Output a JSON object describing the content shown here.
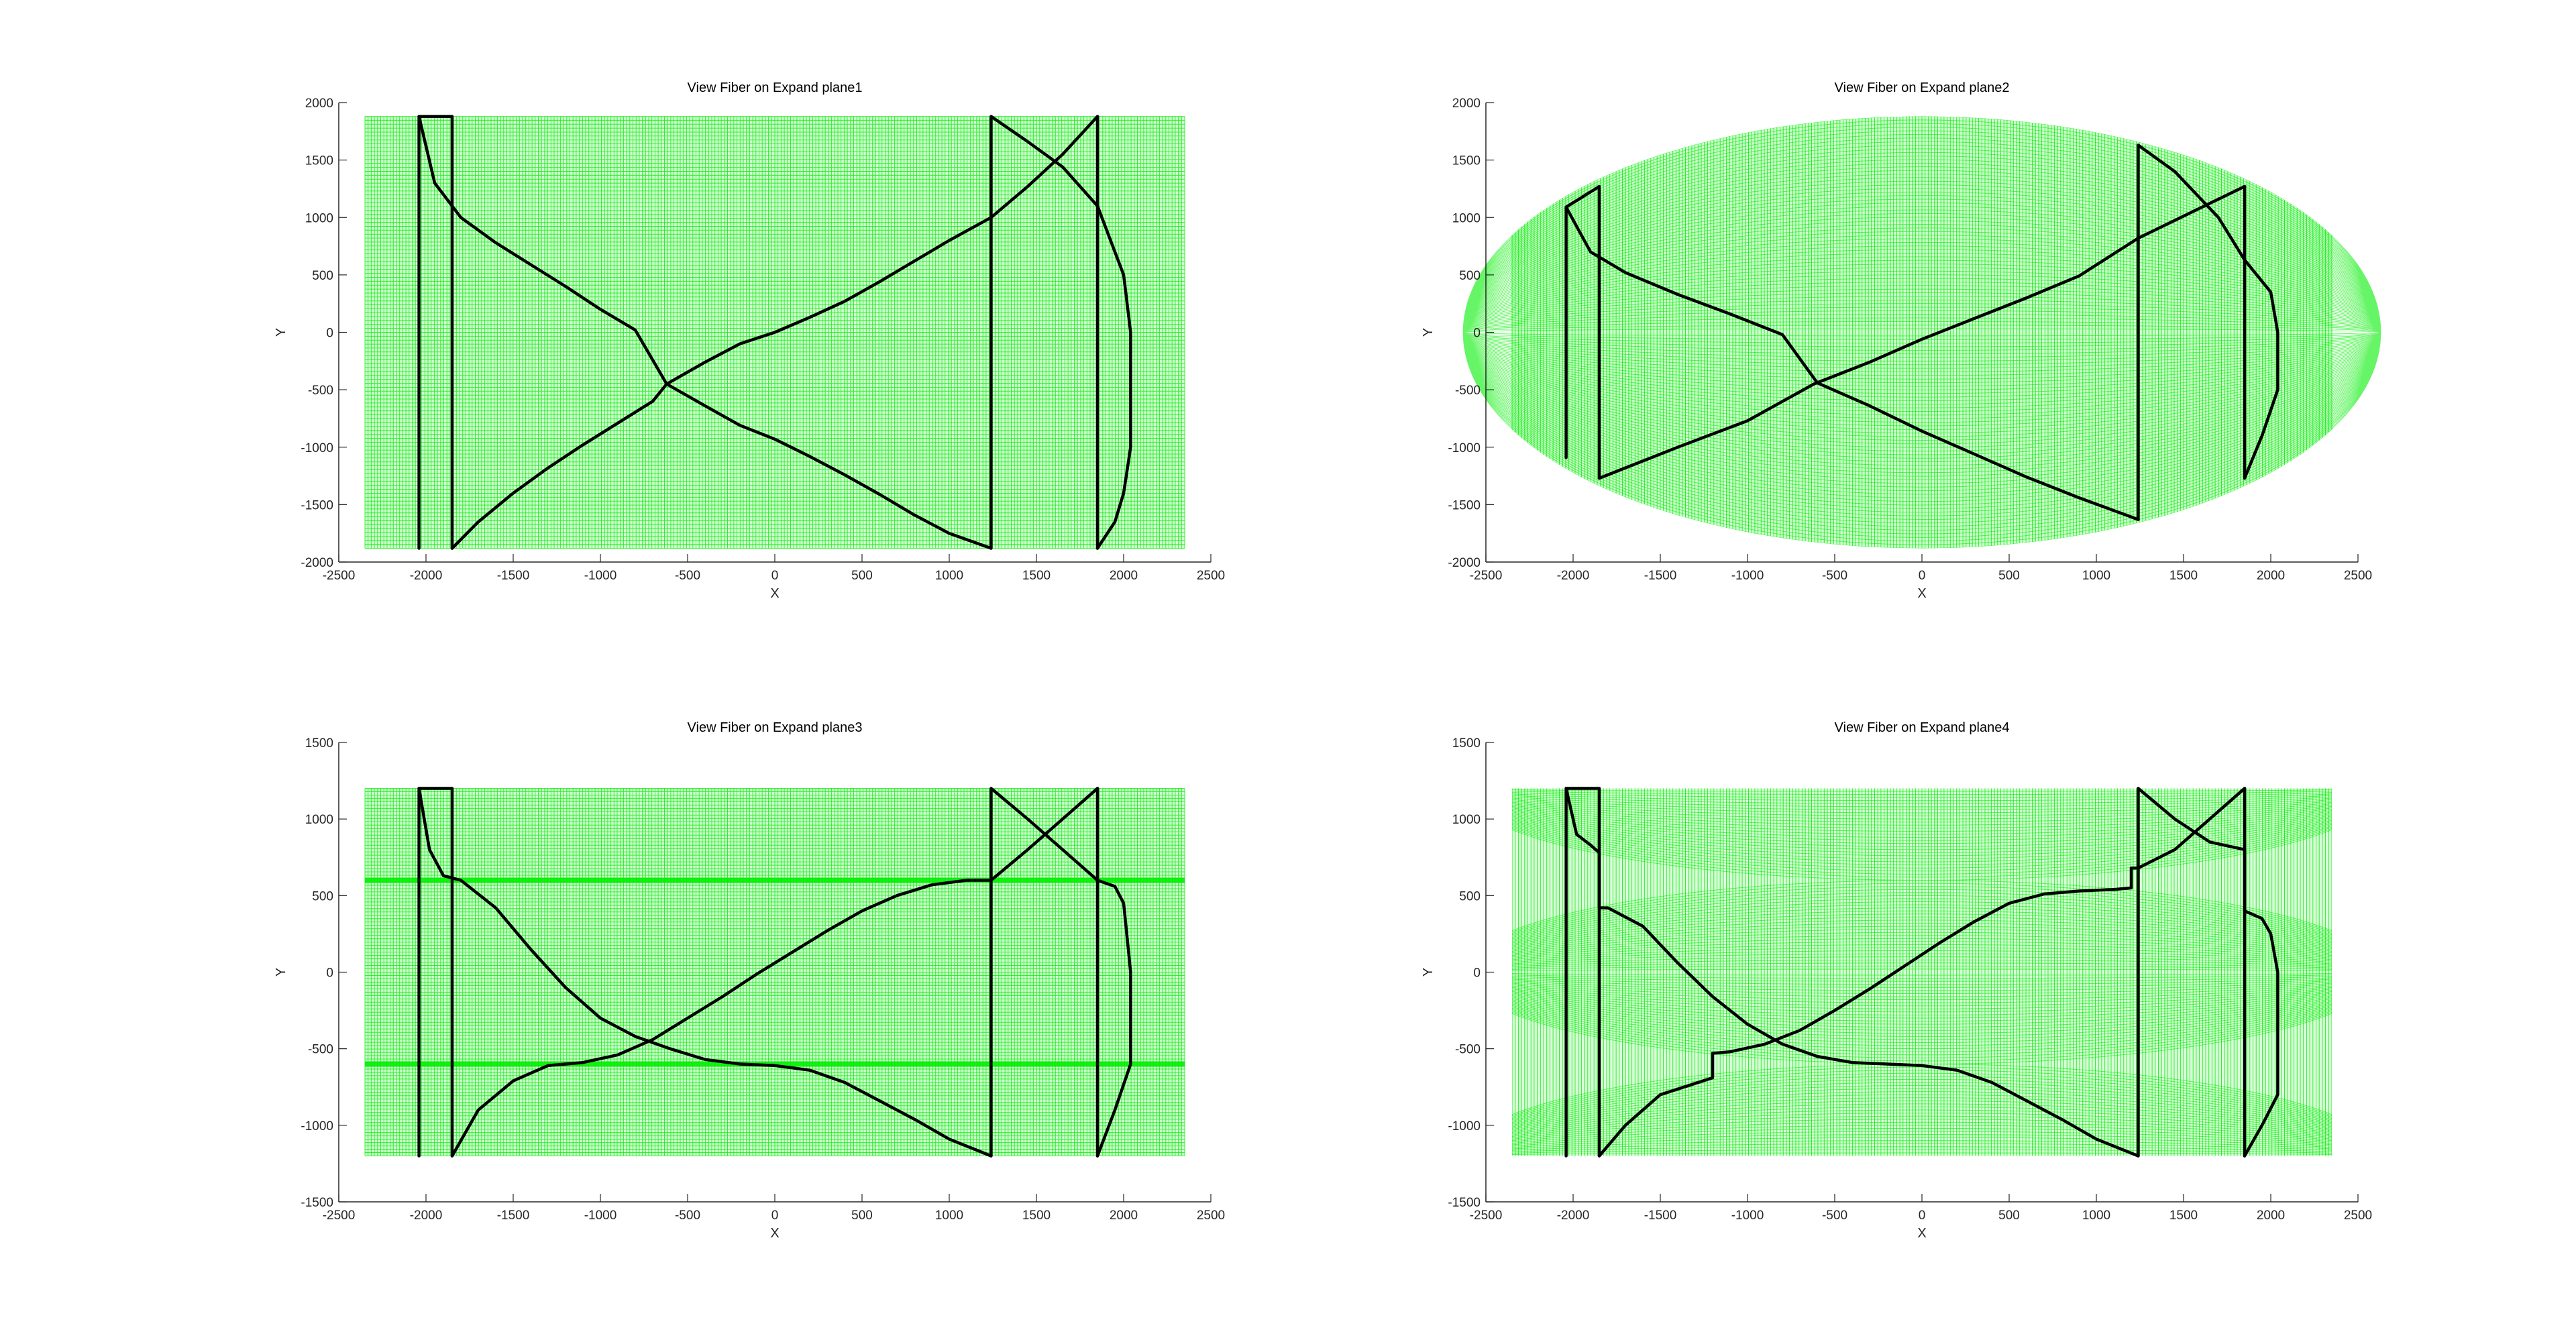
{
  "figure": {
    "background": "#ffffff",
    "mesh_color": "#00ee00",
    "fiber_color": "#000000"
  },
  "chart_data": [
    {
      "type": "line",
      "title": "View Fiber on Expand plane1",
      "xlabel": "X",
      "ylabel": "Y",
      "xlim": [
        -2500,
        2500
      ],
      "ylim": [
        -2000,
        2000
      ],
      "xticks": [
        -2500,
        -2000,
        -1500,
        -1000,
        -500,
        0,
        500,
        1000,
        1500,
        2000,
        2500
      ],
      "yticks": [
        -2000,
        -1500,
        -1000,
        -500,
        0,
        500,
        1000,
        1500,
        2000
      ],
      "mesh": {
        "shape": "rectangle",
        "x_range": [
          -2350,
          2350
        ],
        "y_range": [
          -1880,
          1880
        ],
        "bands": []
      },
      "series": [
        {
          "x": [
            -2040,
            -2040,
            -1850,
            -1850
          ],
          "y": [
            -1880,
            1880,
            1880,
            -1880
          ]
        },
        {
          "x": [
            -2040,
            -1950,
            -1800,
            -1600,
            -1400,
            -1200,
            -1000,
            -800,
            -620,
            -400,
            -200,
            0,
            200,
            400,
            600,
            800,
            1000,
            1240
          ],
          "y": [
            1880,
            1300,
            1000,
            780,
            590,
            400,
            200,
            20,
            -450,
            -640,
            -810,
            -930,
            -1080,
            -1240,
            -1410,
            -1590,
            -1750,
            -1880
          ]
        },
        {
          "x": [
            -1850,
            -1700,
            -1500,
            -1300,
            -1100,
            -900,
            -700,
            -620,
            -400,
            -200,
            0,
            200,
            400,
            600,
            800,
            1000,
            1240,
            1450,
            1650,
            1850
          ],
          "y": [
            -1880,
            -1650,
            -1400,
            -1180,
            -980,
            -790,
            -600,
            -450,
            -260,
            -100,
            0,
            130,
            270,
            440,
            620,
            800,
            1000,
            1270,
            1550,
            1880
          ]
        },
        {
          "x": [
            1850,
            1850
          ],
          "y": [
            1880,
            -1880
          ]
        },
        {
          "x": [
            1240,
            1240,
            1450,
            1650,
            1850,
            2000,
            2040,
            2040,
            2000,
            1950,
            1850
          ],
          "y": [
            -1880,
            1880,
            1660,
            1440,
            1100,
            500,
            0,
            -1000,
            -1400,
            -1650,
            -1880
          ]
        }
      ]
    },
    {
      "type": "line",
      "title": "View Fiber on Expand plane2",
      "xlabel": "X",
      "ylabel": "Y",
      "xlim": [
        -2500,
        2500
      ],
      "ylim": [
        -2000,
        2000
      ],
      "xticks": [
        -2500,
        -2000,
        -1500,
        -1000,
        -500,
        0,
        500,
        1000,
        1500,
        2000,
        2500
      ],
      "yticks": [
        -2000,
        -1500,
        -1000,
        -500,
        0,
        500,
        1000,
        1500,
        2000
      ],
      "mesh": {
        "shape": "ellipse",
        "x_range": [
          -2350,
          2350
        ],
        "y_range": [
          -1880,
          1880
        ],
        "bands": []
      },
      "series": [
        {
          "x": [
            -2040,
            -2040,
            -1850,
            -1850
          ],
          "y": [
            -1090,
            1090,
            1270,
            -1270
          ]
        },
        {
          "x": [
            -2040,
            -1900,
            -1700,
            -1400,
            -1100,
            -800,
            -600,
            -300,
            0,
            300,
            600,
            900,
            1240
          ],
          "y": [
            1090,
            700,
            520,
            330,
            160,
            -20,
            -440,
            -640,
            -860,
            -1060,
            -1260,
            -1440,
            -1630
          ]
        },
        {
          "x": [
            -1850,
            -1400,
            -1000,
            -620,
            -300,
            0,
            300,
            600,
            900,
            1240,
            1850
          ],
          "y": [
            -1270,
            -1000,
            -770,
            -450,
            -260,
            -60,
            120,
            300,
            490,
            820,
            1270
          ]
        },
        {
          "x": [
            1850,
            1850
          ],
          "y": [
            1270,
            -1270
          ]
        },
        {
          "x": [
            1240,
            1240,
            1450,
            1700,
            1850,
            2000,
            2040,
            2040,
            1950,
            1850
          ],
          "y": [
            -1630,
            1630,
            1400,
            1000,
            630,
            350,
            0,
            -500,
            -900,
            -1270
          ]
        }
      ]
    },
    {
      "type": "line",
      "title": "View Fiber on Expand plane3",
      "xlabel": "X",
      "ylabel": "Y",
      "xlim": [
        -2500,
        2500
      ],
      "ylim": [
        -1500,
        1500
      ],
      "xticks": [
        -2500,
        -2000,
        -1500,
        -1000,
        -500,
        0,
        500,
        1000,
        1500,
        2000,
        2500
      ],
      "yticks": [
        -1500,
        -1000,
        -500,
        0,
        500,
        1000,
        1500
      ],
      "mesh": {
        "shape": "rectangle",
        "x_range": [
          -2350,
          2350
        ],
        "y_range": [
          -1200,
          1200
        ],
        "bands": [
          600,
          -600
        ]
      },
      "series": [
        {
          "x": [
            -2040,
            -2040,
            -1850,
            -1850
          ],
          "y": [
            -1200,
            1200,
            1200,
            -1200
          ]
        },
        {
          "x": [
            -2040,
            -1980,
            -1900,
            -1800,
            -1600,
            -1400,
            -1200,
            -1000,
            -800,
            -600,
            -400,
            -200,
            0,
            200,
            400,
            600,
            800,
            1000,
            1240
          ],
          "y": [
            1200,
            800,
            630,
            600,
            420,
            150,
            -100,
            -300,
            -420,
            -500,
            -570,
            -600,
            -610,
            -640,
            -720,
            -840,
            -960,
            -1090,
            -1200
          ]
        },
        {
          "x": [
            -1850,
            -1700,
            -1500,
            -1300,
            -1100,
            -900,
            -700,
            -500,
            -300,
            -100,
            100,
            300,
            500,
            700,
            900,
            1100,
            1240,
            1450,
            1650,
            1850
          ],
          "y": [
            -1200,
            -900,
            -710,
            -610,
            -590,
            -540,
            -440,
            -300,
            -160,
            -10,
            130,
            270,
            400,
            500,
            570,
            600,
            600,
            800,
            1000,
            1200
          ]
        },
        {
          "x": [
            1850,
            1850
          ],
          "y": [
            1200,
            -1200
          ]
        },
        {
          "x": [
            1240,
            1240,
            1450,
            1650,
            1850,
            1950,
            2000,
            2040,
            2040,
            1950,
            1850
          ],
          "y": [
            -1200,
            1200,
            1000,
            800,
            600,
            560,
            450,
            0,
            -600,
            -900,
            -1200
          ]
        }
      ]
    },
    {
      "type": "line",
      "title": "View Fiber on Expand plane4",
      "xlabel": "X",
      "ylabel": "Y",
      "xlim": [
        -2500,
        2500
      ],
      "ylim": [
        -1500,
        1500
      ],
      "xticks": [
        -2500,
        -2000,
        -1500,
        -1000,
        -500,
        0,
        500,
        1000,
        1500,
        2000,
        2500
      ],
      "yticks": [
        -1500,
        -1000,
        -500,
        0,
        500,
        1000,
        1500
      ],
      "mesh": {
        "shape": "triple-ellipse",
        "x_range": [
          -2350,
          2350
        ],
        "y_range": [
          -1200,
          1200
        ],
        "bands": []
      },
      "series": [
        {
          "x": [
            -2040,
            -2040,
            -1850,
            -1850,
            -1850
          ],
          "y": [
            -1200,
            1200,
            1200,
            400,
            -1200
          ]
        },
        {
          "x": [
            -2040,
            -1980,
            -1900,
            -1850,
            -1850,
            -1800,
            -1600,
            -1400,
            -1200,
            -1000,
            -800,
            -600,
            -400,
            -200,
            0,
            200,
            400,
            600,
            800,
            1000,
            1240
          ],
          "y": [
            1200,
            900,
            830,
            780,
            420,
            420,
            300,
            60,
            -160,
            -340,
            -470,
            -550,
            -590,
            -600,
            -610,
            -640,
            -720,
            -840,
            -960,
            -1090,
            -1200
          ]
        },
        {
          "x": [
            -1850,
            -1700,
            -1500,
            -1200,
            -1200,
            -1100,
            -900,
            -700,
            -500,
            -300,
            -100,
            100,
            300,
            500,
            700,
            900,
            1100,
            1200,
            1200,
            1240,
            1450,
            1650,
            1850
          ],
          "y": [
            -1200,
            -1000,
            -800,
            -690,
            -530,
            -520,
            -470,
            -380,
            -250,
            -110,
            40,
            190,
            330,
            450,
            510,
            530,
            540,
            550,
            680,
            680,
            800,
            1000,
            1200
          ]
        },
        {
          "x": [
            1850,
            1850
          ],
          "y": [
            1200,
            -1200
          ]
        },
        {
          "x": [
            1240,
            1240,
            1450,
            1650,
            1850,
            1850,
            1950,
            2000,
            2040,
            2040,
            1950,
            1850
          ],
          "y": [
            -1200,
            1200,
            1000,
            850,
            800,
            400,
            350,
            250,
            0,
            -800,
            -1000,
            -1200
          ]
        }
      ]
    }
  ]
}
